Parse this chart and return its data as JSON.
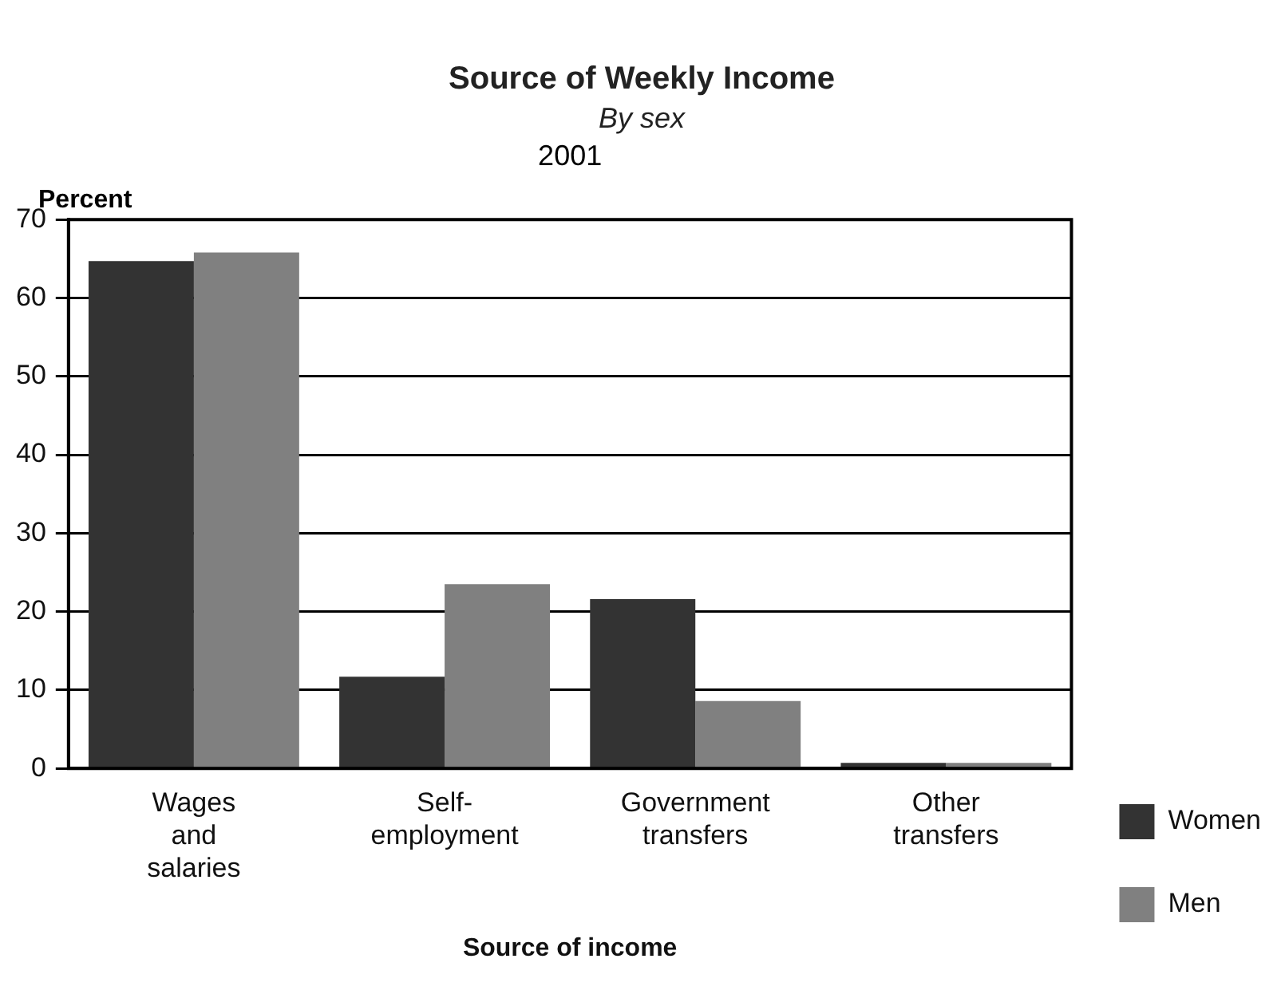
{
  "chart_data": {
    "type": "bar",
    "title": "Source of Weekly Income",
    "subtitle": "By sex",
    "annotations": [
      "2001"
    ],
    "xlabel": "Source of income",
    "ylabel": "Percent",
    "categories": [
      "Wages and salaries",
      "Self-employment",
      "Government transfers",
      "Other transfers"
    ],
    "series": [
      {
        "name": "Women",
        "color": "#333333",
        "values": [
          64.7,
          11.7,
          21.6,
          0.7
        ]
      },
      {
        "name": "Men",
        "color": "#808080",
        "values": [
          65.8,
          23.5,
          8.6,
          0.7
        ]
      }
    ],
    "ylim": [
      0,
      70
    ],
    "yticks": [
      0,
      10,
      20,
      30,
      40,
      50,
      60,
      70
    ],
    "grid": "y",
    "legend": "right"
  }
}
